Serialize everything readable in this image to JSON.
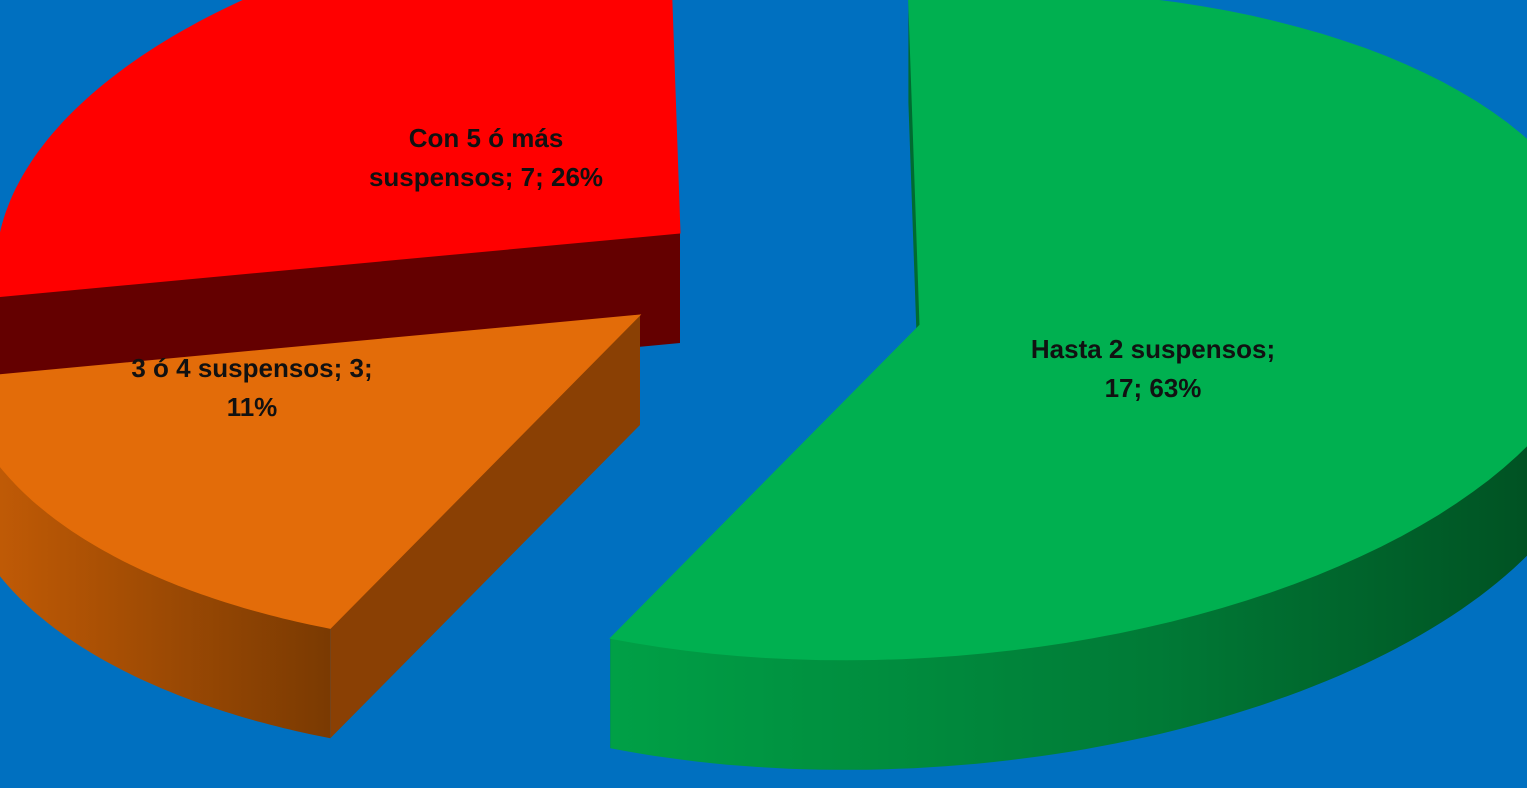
{
  "chart_data": {
    "type": "pie",
    "three_d": true,
    "exploded": true,
    "legend": "none",
    "title": "",
    "slices": [
      {
        "name": "Hasta 2 suspensos",
        "value": 17,
        "percent": 63,
        "label_lines": [
          "Hasta 2 suspensos;",
          "17; 63%"
        ],
        "color": "#00b050",
        "side_color": "#006b30"
      },
      {
        "name": "3 ó 4 suspensos",
        "value": 3,
        "percent": 11,
        "label_lines": [
          "3 ó 4 suspensos; 3;",
          "11%"
        ],
        "color": "#e36c09",
        "side_color": "#8a4004"
      },
      {
        "name": "Con 5 ó más suspensos",
        "value": 7,
        "percent": 26,
        "label_lines": [
          "Con 5 ó más",
          "suspensos; 7; 26%"
        ],
        "color": "#ff0000",
        "side_color": "#640000"
      }
    ]
  }
}
